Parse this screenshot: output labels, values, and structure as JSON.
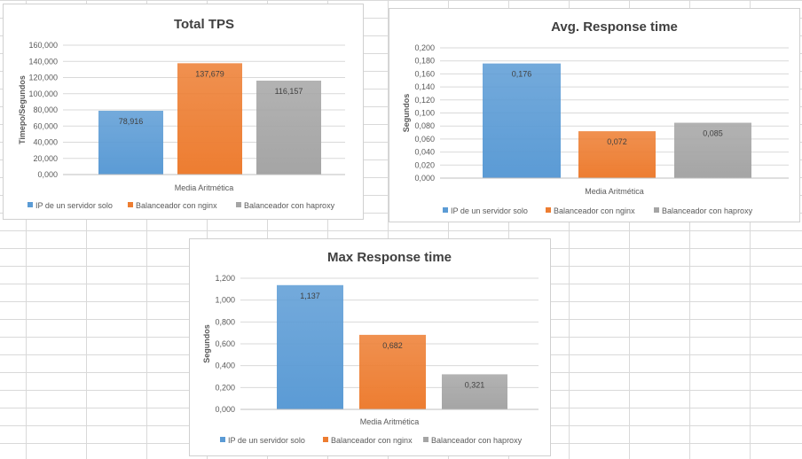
{
  "colors": {
    "series": [
      "#5b9bd5",
      "#ed7d31",
      "#a5a5a5"
    ],
    "gridline": "#d9d9d9",
    "axis_text": "#595959",
    "title_text": "#404040"
  },
  "chart_data": [
    {
      "type": "bar",
      "title": "Total TPS",
      "xlabel": "Media Aritmética",
      "ylabel": "Timepo/Segundos",
      "categories": [
        "Media Aritmética"
      ],
      "ylim": [
        0,
        160000
      ],
      "yticks": [
        "0,000",
        "20,000",
        "40,000",
        "60,000",
        "80,000",
        "100,000",
        "120,000",
        "140,000",
        "160,000"
      ],
      "grid": true,
      "legend_position": "bottom",
      "series": [
        {
          "name": "IP de un servidor solo",
          "values": [
            78916
          ],
          "label": "78,916"
        },
        {
          "name": "Balanceador con nginx",
          "values": [
            137679
          ],
          "label": "137,679"
        },
        {
          "name": "Balanceador con haproxy",
          "values": [
            116157
          ],
          "label": "116,157"
        }
      ]
    },
    {
      "type": "bar",
      "title": "Avg. Response time",
      "xlabel": "Media Aritmética",
      "ylabel": "Segundos",
      "categories": [
        "Media Aritmética"
      ],
      "ylim": [
        0,
        0.2
      ],
      "yticks": [
        "0,000",
        "0,020",
        "0,040",
        "0,060",
        "0,080",
        "0,100",
        "0,120",
        "0,140",
        "0,160",
        "0,180",
        "0,200"
      ],
      "grid": true,
      "legend_position": "bottom",
      "series": [
        {
          "name": "IP de un servidor solo",
          "values": [
            0.176
          ],
          "label": "0,176"
        },
        {
          "name": "Balanceador con nginx",
          "values": [
            0.072
          ],
          "label": "0,072"
        },
        {
          "name": "Balanceador con haproxy",
          "values": [
            0.085
          ],
          "label": "0,085"
        }
      ]
    },
    {
      "type": "bar",
      "title": "Max Response time",
      "xlabel": "Media Aritmética",
      "ylabel": "Segundos",
      "categories": [
        "Media Aritmética"
      ],
      "ylim": [
        0,
        1.2
      ],
      "yticks": [
        "0,000",
        "0,200",
        "0,400",
        "0,600",
        "0,800",
        "1,000",
        "1,200"
      ],
      "grid": true,
      "legend_position": "bottom",
      "series": [
        {
          "name": "IP de un servidor solo",
          "values": [
            1.137
          ],
          "label": "1,137"
        },
        {
          "name": "Balanceador con nginx",
          "values": [
            0.682
          ],
          "label": "0,682"
        },
        {
          "name": "Balanceador con haproxy",
          "values": [
            0.321
          ],
          "label": "0,321"
        }
      ]
    }
  ]
}
